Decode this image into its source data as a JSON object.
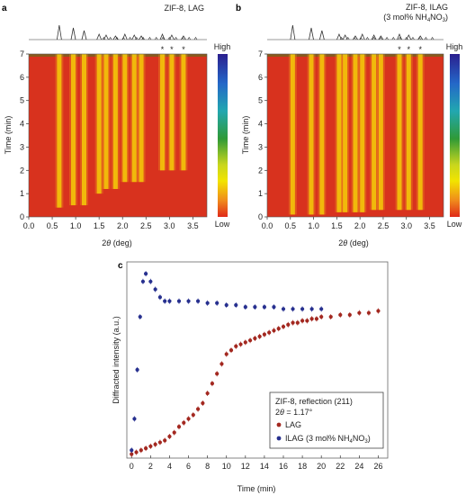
{
  "panels": {
    "a": {
      "letter": "a",
      "title": "ZIF-8, LAG",
      "xlabel_main": "2",
      "xlabel_theta": "θ",
      "xlabel_unit": " (deg)",
      "ylabel": "Time (min)",
      "xticks": [
        "0.0",
        "0.5",
        "1.0",
        "1.5",
        "2.0",
        "2.5",
        "3.0",
        "3.5"
      ],
      "yticks": [
        "0",
        "1",
        "2",
        "3",
        "4",
        "5",
        "6",
        "7"
      ],
      "colorbar": {
        "high": "High",
        "low": "Low"
      },
      "markers": [
        "*",
        "*",
        "*"
      ]
    },
    "b": {
      "letter": "b",
      "title_line1": "ZIF-8, ILAG",
      "title_line2_pre": "(3 mol% NH",
      "title_sub4": "4",
      "title_mid": "NO",
      "title_sub3": "3",
      "title_post": ")",
      "xlabel_main": "2",
      "xlabel_theta": "θ",
      "xlabel_unit": " (deg)",
      "ylabel": "Time (min)",
      "xticks": [
        "0.0",
        "0.5",
        "1.0",
        "1.5",
        "2.0",
        "2.5",
        "3.0",
        "3.5"
      ],
      "yticks": [
        "0",
        "1",
        "2",
        "3",
        "4",
        "5",
        "6",
        "7"
      ],
      "colorbar": {
        "high": "High",
        "low": "Low"
      },
      "markers": [
        "*",
        "*",
        "*"
      ]
    },
    "c": {
      "letter": "c",
      "xlabel": "Time (min)",
      "ylabel": "Diffracted intensity (a.u.)",
      "xticks": [
        "0",
        "2",
        "4",
        "6",
        "8",
        "10",
        "12",
        "14",
        "16",
        "18",
        "20",
        "22",
        "24",
        "26"
      ],
      "legend_title": "ZIF-8, reflection (211)",
      "legend_sub_pre": "2",
      "legend_sub_theta": "θ",
      "legend_sub_post": " = 1.17°",
      "legend_lag": "LAG",
      "legend_ilag_pre": "ILAG (3 mol% NH",
      "legend_ilag_sub4": "4",
      "legend_ilag_mid": "NO",
      "legend_ilag_sub3": "3",
      "legend_ilag_post": ")"
    }
  },
  "colors": {
    "lag": "#a32820",
    "ilag": "#27308f",
    "map_bg": "#d8321e",
    "map_peak": "#f6e400"
  },
  "chart_data": [
    {
      "type": "heatmap",
      "panel": "a",
      "x_range_deg": [
        0.0,
        3.8
      ],
      "y_range_min": [
        0,
        7
      ],
      "peak_positions_deg": [
        0.65,
        0.95,
        1.18,
        1.5,
        1.65,
        1.85,
        2.05,
        2.25,
        2.4,
        2.85,
        3.05,
        3.3
      ],
      "peak_onset_min": [
        0.4,
        0.5,
        0.5,
        1.0,
        1.2,
        1.2,
        1.5,
        1.5,
        1.5,
        2.0,
        2.0,
        2.0
      ]
    },
    {
      "type": "heatmap",
      "panel": "b",
      "x_range_deg": [
        0.0,
        3.8
      ],
      "y_range_min": [
        0,
        7
      ],
      "peak_positions_deg": [
        0.55,
        0.95,
        1.18,
        1.55,
        1.68,
        1.9,
        2.05,
        2.3,
        2.45,
        2.85,
        3.05,
        3.3
      ],
      "peak_onset_min": [
        0.1,
        0.1,
        0.1,
        0.2,
        0.2,
        0.2,
        0.2,
        0.3,
        0.3,
        0.3,
        0.3,
        0.3
      ]
    },
    {
      "type": "scatter",
      "panel": "c",
      "xlabel": "Time (min)",
      "ylabel": "Diffracted intensity (a.u.)",
      "xlim": [
        -0.5,
        27
      ],
      "ylim": [
        0,
        1.0
      ],
      "series": [
        {
          "name": "LAG",
          "color": "#a32820",
          "x": [
            0,
            0.5,
            1,
            1.5,
            2,
            2.5,
            3,
            3.5,
            4,
            4.5,
            5,
            5.5,
            6,
            6.5,
            7,
            7.5,
            8,
            8.5,
            9,
            9.5,
            10,
            10.5,
            11,
            11.5,
            12,
            12.5,
            13,
            13.5,
            14,
            14.5,
            15,
            15.5,
            16,
            16.5,
            17,
            17.5,
            18,
            18.5,
            19,
            19.5,
            20,
            21,
            22,
            23,
            24,
            25,
            26
          ],
          "y": [
            0.02,
            0.03,
            0.04,
            0.05,
            0.06,
            0.07,
            0.08,
            0.09,
            0.11,
            0.13,
            0.16,
            0.18,
            0.2,
            0.22,
            0.25,
            0.28,
            0.33,
            0.38,
            0.43,
            0.48,
            0.53,
            0.55,
            0.57,
            0.58,
            0.59,
            0.6,
            0.61,
            0.62,
            0.63,
            0.64,
            0.65,
            0.66,
            0.67,
            0.68,
            0.69,
            0.69,
            0.7,
            0.7,
            0.71,
            0.71,
            0.72,
            0.72,
            0.73,
            0.73,
            0.74,
            0.74,
            0.75
          ]
        },
        {
          "name": "ILAG (3 mol% NH4NO3)",
          "color": "#27308f",
          "x": [
            0,
            0.3,
            0.6,
            0.9,
            1.2,
            1.5,
            2,
            2.5,
            3,
            3.5,
            4,
            5,
            6,
            7,
            8,
            9,
            10,
            11,
            12,
            13,
            14,
            15,
            16,
            17,
            18,
            19,
            20
          ],
          "y": [
            0.04,
            0.2,
            0.45,
            0.72,
            0.9,
            0.94,
            0.9,
            0.86,
            0.82,
            0.8,
            0.8,
            0.8,
            0.8,
            0.8,
            0.79,
            0.79,
            0.78,
            0.78,
            0.77,
            0.77,
            0.77,
            0.77,
            0.76,
            0.76,
            0.76,
            0.76,
            0.76
          ]
        }
      ]
    }
  ]
}
